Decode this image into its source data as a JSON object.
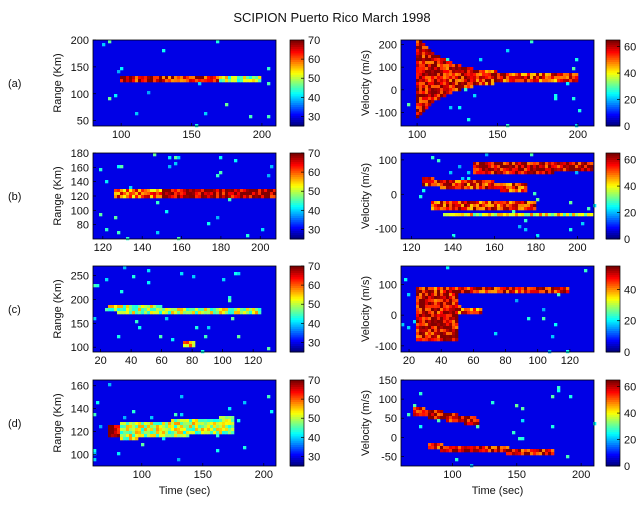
{
  "figure": {
    "title": "SCIPION   Puerto Rico March 1998",
    "rows": [
      {
        "label": "(a)"
      },
      {
        "label": "(b)"
      },
      {
        "label": "(c)"
      },
      {
        "label": "(d)"
      }
    ]
  },
  "colormap": "jet",
  "chart_data": [
    {
      "type": "heatmap",
      "panel": "a-range",
      "ylabel": "Range (Km)",
      "xlabel": "",
      "xlim": [
        80,
        210
      ],
      "ylim": [
        40,
        200
      ],
      "xticks": [
        100,
        150,
        200
      ],
      "yticks": [
        50,
        100,
        150,
        200
      ],
      "clim": [
        25,
        70
      ],
      "cbar_ticks": [
        30,
        40,
        50,
        60,
        70
      ],
      "features": [
        {
          "kind": "band",
          "x": [
            100,
            170
          ],
          "y": [
            128,
            128
          ],
          "h": 14,
          "v": 65
        },
        {
          "kind": "band",
          "x": [
            170,
            200
          ],
          "y": [
            128,
            128
          ],
          "h": 10,
          "v": 50
        }
      ]
    },
    {
      "type": "heatmap",
      "panel": "a-velocity",
      "ylabel": "Velocity (m/s)",
      "xlabel": "",
      "xlim": [
        90,
        210
      ],
      "ylim": [
        -160,
        220
      ],
      "xticks": [
        100,
        150,
        200
      ],
      "yticks": [
        -100,
        0,
        100,
        200
      ],
      "clim": [
        0,
        65
      ],
      "cbar_ticks": [
        0,
        20,
        40,
        60
      ],
      "features": [
        {
          "kind": "fan",
          "x0": 100,
          "y0": 55,
          "spread": 170,
          "decay": 18,
          "x1": 200,
          "v": 60
        }
      ]
    },
    {
      "type": "heatmap",
      "panel": "b-range",
      "ylabel": "Range (Km)",
      "xlabel": "",
      "xlim": [
        115,
        208
      ],
      "ylim": [
        60,
        180
      ],
      "xticks": [
        120,
        140,
        160,
        180,
        200
      ],
      "yticks": [
        80,
        100,
        120,
        140,
        160,
        180
      ],
      "clim": [
        25,
        70
      ],
      "cbar_ticks": [
        30,
        40,
        50,
        60,
        70
      ],
      "features": [
        {
          "kind": "band",
          "x": [
            125,
            150
          ],
          "y": [
            125,
            125
          ],
          "h": 12,
          "v": 60
        },
        {
          "kind": "band",
          "x": [
            150,
            208
          ],
          "y": [
            124,
            124
          ],
          "h": 14,
          "v": 68
        }
      ]
    },
    {
      "type": "heatmap",
      "panel": "b-velocity",
      "ylabel": "Velocity (m/s)",
      "xlabel": "",
      "xlim": [
        115,
        208
      ],
      "ylim": [
        -130,
        120
      ],
      "xticks": [
        120,
        140,
        160,
        180,
        200
      ],
      "yticks": [
        -100,
        0,
        100
      ],
      "clim": [
        0,
        65
      ],
      "cbar_ticks": [
        0,
        20,
        40,
        60
      ],
      "features": [
        {
          "kind": "band",
          "x": [
            150,
            208
          ],
          "y": [
            75,
            80
          ],
          "h": 30,
          "v": 60
        },
        {
          "kind": "band",
          "x": [
            125,
            175
          ],
          "y": [
            35,
            20
          ],
          "h": 25,
          "v": 55
        },
        {
          "kind": "band",
          "x": [
            130,
            180
          ],
          "y": [
            -30,
            -35
          ],
          "h": 25,
          "v": 55
        },
        {
          "kind": "band",
          "x": [
            135,
            208
          ],
          "y": [
            -60,
            -60
          ],
          "h": 10,
          "v": 40
        }
      ]
    },
    {
      "type": "heatmap",
      "panel": "c-range",
      "ylabel": "Range (Km)",
      "xlabel": "",
      "xlim": [
        15,
        135
      ],
      "ylim": [
        90,
        270
      ],
      "xticks": [
        20,
        40,
        60,
        80,
        100,
        120
      ],
      "yticks": [
        100,
        150,
        200,
        250
      ],
      "clim": [
        25,
        70
      ],
      "cbar_ticks": [
        30,
        40,
        50,
        60,
        70
      ],
      "features": [
        {
          "kind": "band",
          "x": [
            25,
            125
          ],
          "y": [
            180,
            175
          ],
          "h": 14,
          "v": 50
        },
        {
          "kind": "spot",
          "x": 78,
          "y": 107,
          "r": 5,
          "v": 55
        }
      ]
    },
    {
      "type": "heatmap",
      "panel": "c-velocity",
      "ylabel": "Velocity (m/s)",
      "xlabel": "",
      "xlim": [
        15,
        135
      ],
      "ylim": [
        -120,
        160
      ],
      "xticks": [
        20,
        40,
        60,
        80,
        100,
        120
      ],
      "yticks": [
        -100,
        0,
        100
      ],
      "clim": [
        0,
        55
      ],
      "cbar_ticks": [
        0,
        20,
        40
      ],
      "features": [
        {
          "kind": "block",
          "x": [
            25,
            50
          ],
          "y": [
            -80,
            85
          ],
          "v": 50
        },
        {
          "kind": "band",
          "x": [
            25,
            120
          ],
          "y": [
            80,
            80
          ],
          "h": 22,
          "v": 48
        },
        {
          "kind": "band",
          "x": [
            30,
            65
          ],
          "y": [
            30,
            10
          ],
          "h": 22,
          "v": 45
        }
      ]
    },
    {
      "type": "heatmap",
      "panel": "d-range",
      "ylabel": "Range (Km)",
      "xlabel": "Time (sec)",
      "xlim": [
        60,
        210
      ],
      "ylim": [
        90,
        165
      ],
      "xticks": [
        100,
        150,
        200
      ],
      "yticks": [
        100,
        120,
        140,
        160
      ],
      "clim": [
        25,
        70
      ],
      "cbar_ticks": [
        30,
        40,
        50,
        60,
        70
      ],
      "features": [
        {
          "kind": "band",
          "x": [
            72,
            82
          ],
          "y": [
            120,
            120
          ],
          "h": 10,
          "v": 68
        },
        {
          "kind": "band",
          "x": [
            82,
            175
          ],
          "y": [
            120,
            126
          ],
          "h": 14,
          "v": 50
        }
      ]
    },
    {
      "type": "heatmap",
      "panel": "d-velocity",
      "ylabel": "Velocity (m/s)",
      "xlabel": "Time (sec)",
      "xlim": [
        60,
        210
      ],
      "ylim": [
        -75,
        150
      ],
      "xticks": [
        100,
        150,
        200
      ],
      "yticks": [
        -50,
        0,
        50,
        100,
        150
      ],
      "clim": [
        0,
        65
      ],
      "cbar_ticks": [
        0,
        20,
        40,
        60
      ],
      "features": [
        {
          "kind": "band",
          "x": [
            70,
            120
          ],
          "y": [
            70,
            40
          ],
          "h": 22,
          "v": 60
        },
        {
          "kind": "band",
          "x": [
            80,
            180
          ],
          "y": [
            -25,
            -40
          ],
          "h": 16,
          "v": 58
        }
      ]
    }
  ]
}
